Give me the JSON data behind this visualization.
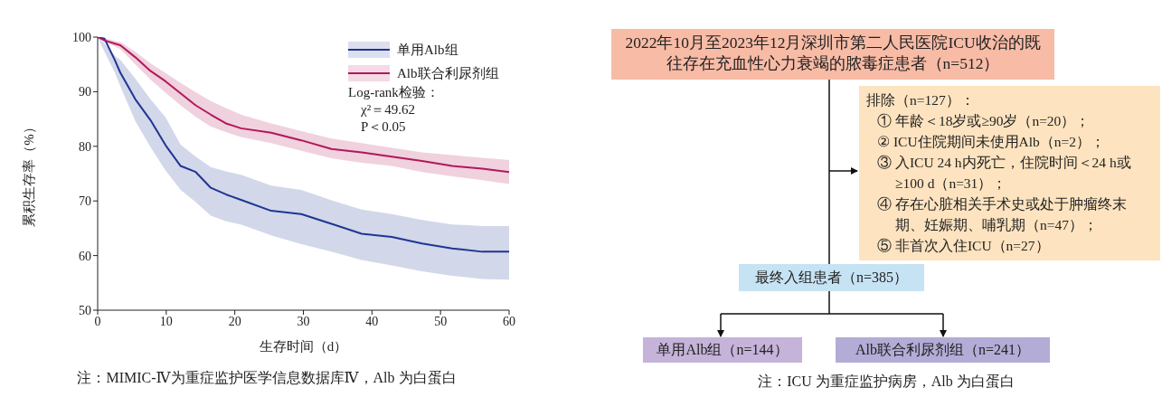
{
  "chart_data": [
    {
      "type": "line",
      "xlabel": "生存时间（d）",
      "ylabel": "累积生存率（%）",
      "x": [
        0,
        1,
        2.5,
        3.3,
        5.5,
        7.7,
        9.9,
        12.1,
        14.3,
        16.5,
        18.7,
        20.9,
        25.3,
        29.7,
        34.1,
        38.5,
        42.9,
        47.3,
        51.7,
        56.1,
        60
      ],
      "series": [
        {
          "name": "单用Alb组",
          "color": "#1f3593",
          "values": [
            100,
            99.7,
            95.8,
            93.5,
            88.6,
            84.8,
            80.2,
            76.4,
            75.3,
            72.4,
            71.2,
            70.2,
            68.2,
            67.6,
            65.8,
            64.0,
            63.4,
            62.2,
            61.3,
            60.7,
            60.7
          ],
          "upper": [
            100,
            98.8,
            96.6,
            95.8,
            92.4,
            88.6,
            85.3,
            80.3,
            78.1,
            76.2,
            75.4,
            74.8,
            72.8,
            72.0,
            70.1,
            68.4,
            67.6,
            66.5,
            65.7,
            65.4,
            65.4
          ],
          "lower": [
            100,
            97.3,
            93.5,
            91.0,
            84.6,
            79.9,
            75.6,
            72.0,
            69.8,
            67.3,
            66.3,
            65.7,
            63.7,
            62.1,
            60.7,
            59.2,
            58.2,
            57.1,
            56.3,
            55.7,
            55.6
          ]
        },
        {
          "name": "Alb联合利尿剂组",
          "color": "#b3175c",
          "values": [
            100,
            99.4,
            98.8,
            98.5,
            96.3,
            93.8,
            91.9,
            89.7,
            87.5,
            85.8,
            84.2,
            83.3,
            82.5,
            81.1,
            79.5,
            78.9,
            78.1,
            77.3,
            76.4,
            75.9,
            75.3
          ],
          "upper": [
            100,
            99.8,
            99.3,
            99.1,
            97.3,
            95.2,
            93.4,
            91.6,
            89.9,
            88.3,
            87.0,
            85.8,
            84.2,
            82.8,
            81.4,
            80.6,
            79.7,
            78.9,
            78.4,
            77.9,
            77.5
          ],
          "lower": [
            100,
            99.0,
            98.3,
            97.8,
            95.0,
            92.2,
            89.8,
            87.5,
            85.4,
            83.6,
            82.6,
            81.7,
            80.6,
            79.2,
            77.8,
            77.0,
            76.4,
            75.3,
            74.5,
            73.8,
            73.1
          ]
        }
      ],
      "xlim": [
        0,
        60
      ],
      "xticks": [
        0,
        10,
        20,
        30,
        40,
        50,
        60
      ],
      "ylim": [
        50,
        100
      ],
      "yticks": [
        50,
        60,
        70,
        80,
        90,
        100
      ],
      "grid": false,
      "legend": "top right",
      "marker": "none",
      "line_style": "solid",
      "annotations": [
        "Log-rank检验：",
        "χ²＝49.62",
        "P＜0.05",
        "注：MIMIC-Ⅳ为重症监护医学信息数据库Ⅳ，Alb 为白蛋白"
      ]
    },
    {
      "type": "other",
      "annotations": [
        "2022年10月至2023年12月深圳市第二人民医院ICU收治的既往存在充血性心力衰竭的脓毒症患者（n=512）",
        "排除（n=127）：",
        "① 年龄＜18岁或≥90岁（n=20）；",
        "② ICU住院期间未使用Alb（n=2）；",
        "③ 入ICU 24 h内死亡，住院时间＜24 h或≥100 d（n=31）；",
        "④ 存在心脏相关手术史或处于肿瘤终末期、妊娠期、哺乳期（n=47）；",
        "⑤ 非首次入住ICU（n=27）",
        "最终入组患者（n=385）",
        "单用Alb组（n=144）",
        "Alb联合利尿剂组（n=241）",
        "注：ICU 为重症监护病房，Alb 为白蛋白"
      ]
    }
  ]
}
